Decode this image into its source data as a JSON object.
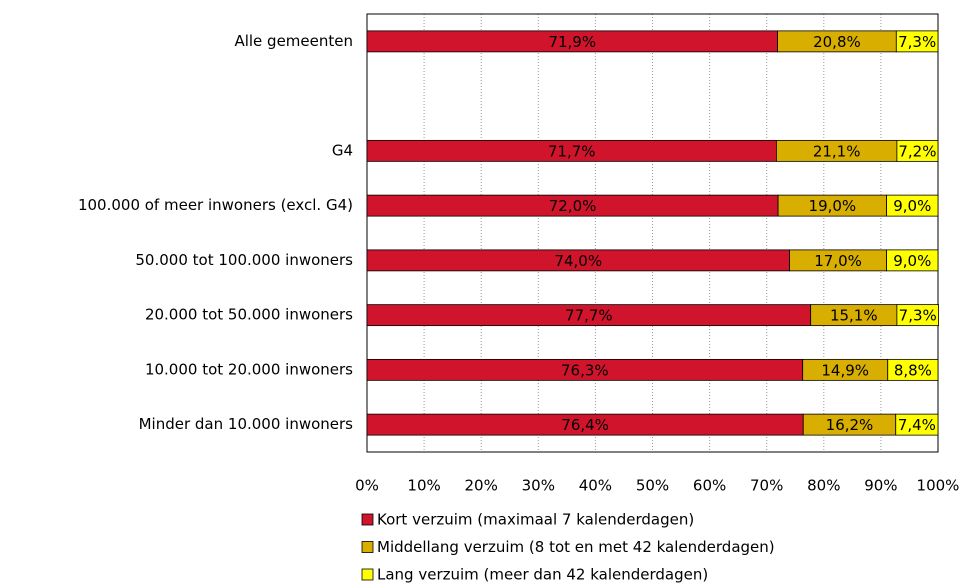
{
  "chart_data": {
    "type": "stacked-barh",
    "categories": [
      "Alle gemeenten",
      null,
      "G4",
      "100.000 of meer inwoners (excl. G4)",
      "50.000 tot 100.000 inwoners",
      "20.000 tot 50.000 inwoners",
      "10.000 tot 20.000 inwoners",
      "Minder dan 10.000 inwoners"
    ],
    "series": [
      {
        "name": "Kort verzuim (maximaal 7 kalenderdagen)",
        "color": "#d0142c",
        "values": [
          71.9,
          null,
          71.7,
          72.0,
          74.0,
          77.7,
          76.3,
          76.4
        ],
        "value_labels": [
          "71,9%",
          null,
          "71,7%",
          "72,0%",
          "74,0%",
          "77,7%",
          "76,3%",
          "76,4%"
        ]
      },
      {
        "name": "Middellang verzuim (8 tot en met 42 kalenderdagen)",
        "color": "#d8ae00",
        "values": [
          20.8,
          null,
          21.1,
          19.0,
          17.0,
          15.1,
          14.9,
          16.2
        ],
        "value_labels": [
          "20,8%",
          null,
          "21,1%",
          "19,0%",
          "17,0%",
          "15,1%",
          "14,9%",
          "16,2%"
        ]
      },
      {
        "name": "Lang verzuim (meer dan 42 kalenderdagen)",
        "color": "#ffff00",
        "values": [
          7.3,
          null,
          7.2,
          9.0,
          9.0,
          7.3,
          8.8,
          7.4
        ],
        "value_labels": [
          "7,3%",
          null,
          "7,2%",
          "9,0%",
          "9,0%",
          "7,3%",
          "8,8%",
          "7,4%"
        ]
      }
    ],
    "xlim": [
      0,
      100
    ],
    "xticks": [
      {
        "value": 0,
        "label": "0%"
      },
      {
        "value": 10,
        "label": "10%"
      },
      {
        "value": 20,
        "label": "20%"
      },
      {
        "value": 30,
        "label": "30%"
      },
      {
        "value": 40,
        "label": "40%"
      },
      {
        "value": 50,
        "label": "50%"
      },
      {
        "value": 60,
        "label": "60%"
      },
      {
        "value": 70,
        "label": "70%"
      },
      {
        "value": 80,
        "label": "80%"
      },
      {
        "value": 90,
        "label": "90%"
      },
      {
        "value": 100,
        "label": "100%"
      }
    ],
    "grid": true,
    "legend": "bottom"
  }
}
